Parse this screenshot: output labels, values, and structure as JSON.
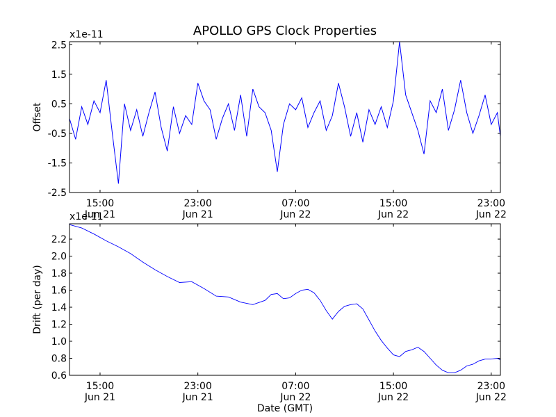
{
  "figure_title": "APOLLO GPS Clock Properties",
  "colors": {
    "line": "#0000ff",
    "axes": "#000000",
    "background": "#ffffff"
  },
  "chart_data": [
    {
      "type": "line",
      "ylabel": "Offset",
      "xlabel": "",
      "scale_label": "x1e-11",
      "x_range": [
        "2014-06-21T12:30",
        "2014-06-22T23:45"
      ],
      "ylim": [
        -2.5,
        2.6
      ],
      "y_ticks": [
        -2.5,
        -1.5,
        -0.5,
        0.5,
        1.5,
        2.5
      ],
      "y_tick_labels": [
        "-2.5",
        "-1.5",
        "-0.5",
        "0.5",
        "1.5",
        "2.5"
      ],
      "x_ticks": [
        "2014-06-21T15:00",
        "2014-06-21T23:00",
        "2014-06-22T07:00",
        "2014-06-22T15:00",
        "2014-06-22T23:00"
      ],
      "x_tick_labels": [
        [
          "15:00",
          "Jun 21"
        ],
        [
          "23:00",
          "Jun 21"
        ],
        [
          "07:00",
          "Jun 22"
        ],
        [
          "15:00",
          "Jun 22"
        ],
        [
          "23:00",
          "Jun 22"
        ]
      ],
      "grid": false,
      "legend": "none",
      "series": [
        {
          "x": [
            "2014-06-21T12:30",
            "2014-06-21T13:00",
            "2014-06-21T13:30",
            "2014-06-21T14:00",
            "2014-06-21T14:30",
            "2014-06-21T15:00",
            "2014-06-21T15:30",
            "2014-06-21T16:00",
            "2014-06-21T16:30",
            "2014-06-21T17:00",
            "2014-06-21T17:30",
            "2014-06-21T18:00",
            "2014-06-21T18:30",
            "2014-06-21T19:00",
            "2014-06-21T19:30",
            "2014-06-21T20:00",
            "2014-06-21T20:30",
            "2014-06-21T21:00",
            "2014-06-21T21:30",
            "2014-06-21T22:00",
            "2014-06-21T22:30",
            "2014-06-21T23:00",
            "2014-06-21T23:30",
            "2014-06-22T00:00",
            "2014-06-22T00:30",
            "2014-06-22T01:00",
            "2014-06-22T01:30",
            "2014-06-22T02:00",
            "2014-06-22T02:30",
            "2014-06-22T03:00",
            "2014-06-22T03:30",
            "2014-06-22T04:00",
            "2014-06-22T04:30",
            "2014-06-22T05:00",
            "2014-06-22T05:30",
            "2014-06-22T06:00",
            "2014-06-22T06:30",
            "2014-06-22T07:00",
            "2014-06-22T07:30",
            "2014-06-22T08:00",
            "2014-06-22T08:30",
            "2014-06-22T09:00",
            "2014-06-22T09:30",
            "2014-06-22T10:00",
            "2014-06-22T10:30",
            "2014-06-22T11:00",
            "2014-06-22T11:30",
            "2014-06-22T12:00",
            "2014-06-22T12:30",
            "2014-06-22T13:00",
            "2014-06-22T13:30",
            "2014-06-22T14:00",
            "2014-06-22T14:30",
            "2014-06-22T15:00",
            "2014-06-22T15:30",
            "2014-06-22T16:00",
            "2014-06-22T16:30",
            "2014-06-22T17:00",
            "2014-06-22T17:30",
            "2014-06-22T18:00",
            "2014-06-22T18:30",
            "2014-06-22T19:00",
            "2014-06-22T19:30",
            "2014-06-22T20:00",
            "2014-06-22T20:30",
            "2014-06-22T21:00",
            "2014-06-22T21:30",
            "2014-06-22T22:00",
            "2014-06-22T22:30",
            "2014-06-22T23:00",
            "2014-06-22T23:30",
            "2014-06-22T23:45"
          ],
          "values": [
            0.0,
            -0.7,
            0.4,
            -0.2,
            0.6,
            0.2,
            1.3,
            -0.5,
            -2.2,
            0.5,
            -0.4,
            0.3,
            -0.6,
            0.2,
            0.9,
            -0.3,
            -1.1,
            0.4,
            -0.5,
            0.1,
            -0.2,
            1.2,
            0.6,
            0.3,
            -0.7,
            0.0,
            0.5,
            -0.4,
            0.8,
            -0.6,
            1.0,
            0.4,
            0.2,
            -0.4,
            -1.8,
            -0.2,
            0.5,
            0.3,
            0.7,
            -0.3,
            0.2,
            0.6,
            -0.4,
            0.1,
            1.2,
            0.4,
            -0.6,
            0.2,
            -0.8,
            0.3,
            -0.2,
            0.4,
            -0.3,
            0.6,
            2.6,
            0.8,
            0.2,
            -0.4,
            -1.2,
            0.6,
            0.2,
            1.0,
            -0.4,
            0.3,
            1.3,
            0.2,
            -0.5,
            0.1,
            0.8,
            -0.2,
            0.2,
            -0.6
          ]
        }
      ]
    },
    {
      "type": "line",
      "ylabel": "Drift (per day)",
      "xlabel": "Date (GMT)",
      "scale_label": "x1e-11",
      "x_range": [
        "2014-06-21T12:30",
        "2014-06-22T23:45"
      ],
      "ylim": [
        0.6,
        2.38
      ],
      "y_ticks": [
        0.6,
        0.8,
        1.0,
        1.2,
        1.4,
        1.6,
        1.8,
        2.0,
        2.2
      ],
      "y_tick_labels": [
        "0.6",
        "0.8",
        "1.0",
        "1.2",
        "1.4",
        "1.6",
        "1.8",
        "2.0",
        "2.2"
      ],
      "x_ticks": [
        "2014-06-21T15:00",
        "2014-06-21T23:00",
        "2014-06-22T07:00",
        "2014-06-22T15:00",
        "2014-06-22T23:00"
      ],
      "x_tick_labels": [
        [
          "15:00",
          "Jun 21"
        ],
        [
          "23:00",
          "Jun 21"
        ],
        [
          "07:00",
          "Jun 22"
        ],
        [
          "15:00",
          "Jun 22"
        ],
        [
          "23:00",
          "Jun 22"
        ]
      ],
      "grid": false,
      "legend": "none",
      "series": [
        {
          "x": [
            "2014-06-21T12:30",
            "2014-06-21T13:30",
            "2014-06-21T14:30",
            "2014-06-21T15:30",
            "2014-06-21T16:30",
            "2014-06-21T17:30",
            "2014-06-21T18:30",
            "2014-06-21T19:30",
            "2014-06-21T20:30",
            "2014-06-21T21:30",
            "2014-06-21T22:30",
            "2014-06-21T23:30",
            "2014-06-22T00:30",
            "2014-06-22T01:30",
            "2014-06-22T02:30",
            "2014-06-22T03:30",
            "2014-06-22T04:30",
            "2014-06-22T05:00",
            "2014-06-22T05:30",
            "2014-06-22T06:00",
            "2014-06-22T06:30",
            "2014-06-22T07:00",
            "2014-06-22T07:30",
            "2014-06-22T08:00",
            "2014-06-22T08:30",
            "2014-06-22T09:00",
            "2014-06-22T09:30",
            "2014-06-22T10:00",
            "2014-06-22T10:30",
            "2014-06-22T11:00",
            "2014-06-22T11:30",
            "2014-06-22T12:00",
            "2014-06-22T12:30",
            "2014-06-22T13:00",
            "2014-06-22T13:30",
            "2014-06-22T14:00",
            "2014-06-22T14:30",
            "2014-06-22T15:00",
            "2014-06-22T15:30",
            "2014-06-22T16:00",
            "2014-06-22T16:30",
            "2014-06-22T17:00",
            "2014-06-22T17:30",
            "2014-06-22T18:00",
            "2014-06-22T18:30",
            "2014-06-22T19:00",
            "2014-06-22T19:30",
            "2014-06-22T20:00",
            "2014-06-22T20:30",
            "2014-06-22T21:00",
            "2014-06-22T21:30",
            "2014-06-22T22:00",
            "2014-06-22T22:30",
            "2014-06-22T23:00",
            "2014-06-22T23:30",
            "2014-06-22T23:45"
          ],
          "values": [
            2.37,
            2.33,
            2.26,
            2.18,
            2.11,
            2.03,
            1.93,
            1.84,
            1.76,
            1.69,
            1.7,
            1.62,
            1.53,
            1.52,
            1.46,
            1.43,
            1.48,
            1.55,
            1.56,
            1.5,
            1.51,
            1.56,
            1.6,
            1.61,
            1.57,
            1.48,
            1.36,
            1.26,
            1.35,
            1.41,
            1.43,
            1.44,
            1.38,
            1.25,
            1.12,
            1.01,
            0.92,
            0.84,
            0.82,
            0.88,
            0.9,
            0.93,
            0.88,
            0.8,
            0.72,
            0.66,
            0.63,
            0.63,
            0.66,
            0.71,
            0.73,
            0.77,
            0.79,
            0.79,
            0.8,
            0.78
          ]
        }
      ]
    }
  ]
}
